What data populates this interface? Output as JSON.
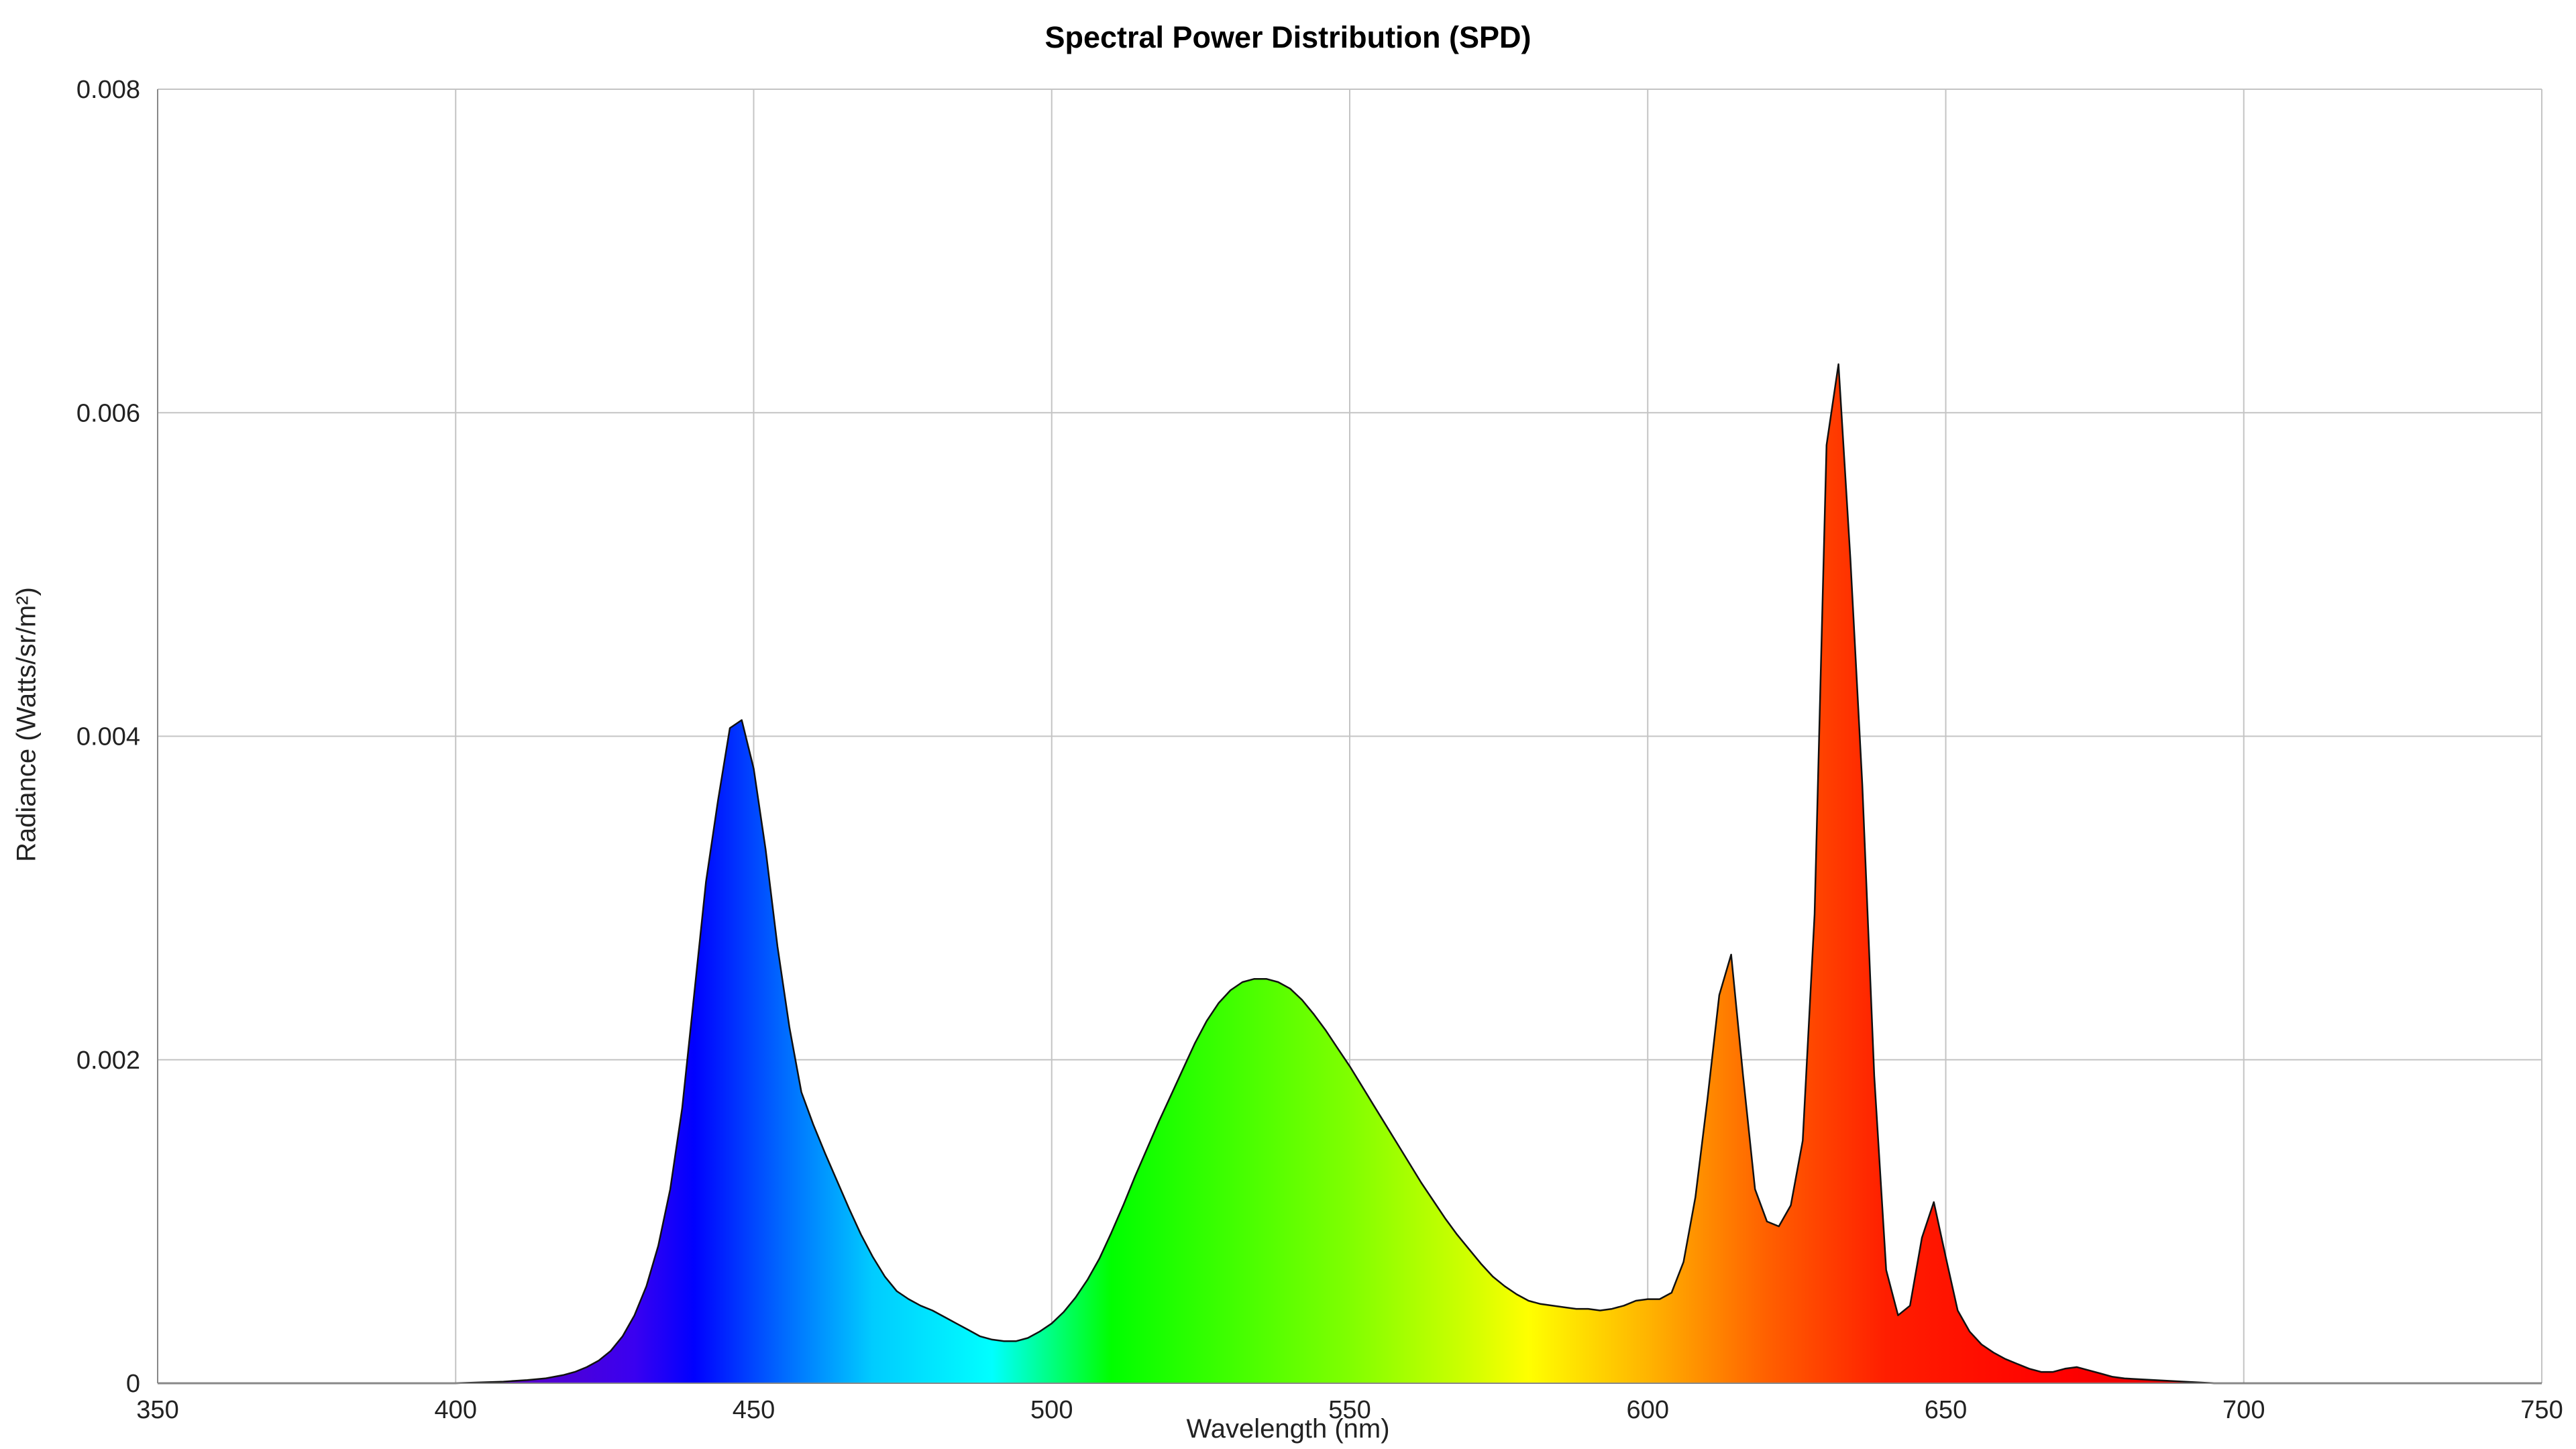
{
  "chart_data": {
    "type": "area",
    "title": "Spectral Power Distribution (SPD)",
    "xlabel": "Wavelength (nm)",
    "ylabel": "Radiance (Watts/sr/m²)",
    "xlim": [
      350,
      750
    ],
    "ylim": [
      0,
      0.008
    ],
    "x_ticks": [
      "350",
      "400",
      "450",
      "500",
      "550",
      "600",
      "650",
      "700",
      "750"
    ],
    "y_ticks": [
      "0",
      "0.002",
      "0.004",
      "0.006",
      "0.008"
    ],
    "grid": true,
    "fill": "visible-spectrum gradient",
    "x": [
      350,
      380,
      400,
      408,
      412,
      415,
      418,
      420,
      422,
      424,
      426,
      428,
      430,
      432,
      434,
      436,
      438,
      440,
      442,
      444,
      446,
      448,
      450,
      452,
      454,
      456,
      458,
      460,
      462,
      464,
      466,
      468,
      470,
      472,
      474,
      476,
      478,
      480,
      482,
      484,
      486,
      488,
      490,
      492,
      494,
      496,
      498,
      500,
      502,
      504,
      506,
      508,
      510,
      512,
      514,
      516,
      518,
      520,
      522,
      524,
      526,
      528,
      530,
      532,
      534,
      536,
      538,
      540,
      542,
      544,
      546,
      548,
      550,
      552,
      554,
      556,
      558,
      560,
      562,
      564,
      566,
      568,
      570,
      572,
      574,
      576,
      578,
      580,
      582,
      584,
      586,
      588,
      590,
      592,
      594,
      596,
      598,
      600,
      602,
      604,
      606,
      608,
      610,
      612,
      614,
      616,
      618,
      620,
      622,
      624,
      626,
      628,
      630,
      632,
      634,
      636,
      638,
      640,
      642,
      644,
      646,
      648,
      650,
      652,
      654,
      656,
      658,
      660,
      662,
      664,
      666,
      668,
      670,
      672,
      674,
      676,
      678,
      680,
      685,
      690,
      695,
      700,
      720,
      750
    ],
    "y": [
      0,
      0,
      0,
      1e-05,
      2e-05,
      3e-05,
      5e-05,
      7e-05,
      0.0001,
      0.00014,
      0.0002,
      0.00029,
      0.00042,
      0.0006,
      0.00085,
      0.0012,
      0.0017,
      0.0024,
      0.0031,
      0.0036,
      0.00405,
      0.0041,
      0.0038,
      0.0033,
      0.0027,
      0.0022,
      0.0018,
      0.0016,
      0.00142,
      0.00125,
      0.00108,
      0.00092,
      0.00078,
      0.00066,
      0.00057,
      0.00052,
      0.00048,
      0.00045,
      0.00041,
      0.00037,
      0.00033,
      0.00029,
      0.00027,
      0.00026,
      0.00026,
      0.00028,
      0.00032,
      0.00037,
      0.00044,
      0.00053,
      0.00064,
      0.00077,
      0.00093,
      0.0011,
      0.00128,
      0.00145,
      0.00162,
      0.00178,
      0.00194,
      0.0021,
      0.00224,
      0.00235,
      0.00243,
      0.00248,
      0.0025,
      0.0025,
      0.00248,
      0.00244,
      0.00237,
      0.00228,
      0.00218,
      0.00207,
      0.00196,
      0.00184,
      0.00172,
      0.0016,
      0.00148,
      0.00136,
      0.00124,
      0.00113,
      0.00102,
      0.00092,
      0.00083,
      0.00074,
      0.00066,
      0.0006,
      0.00055,
      0.00051,
      0.00049,
      0.00048,
      0.00047,
      0.00046,
      0.00046,
      0.00045,
      0.00046,
      0.00048,
      0.00051,
      0.00052,
      0.00052,
      0.00056,
      0.00075,
      0.00115,
      0.00175,
      0.0024,
      0.00265,
      0.0019,
      0.0012,
      0.001,
      0.00097,
      0.0011,
      0.0015,
      0.0029,
      0.0058,
      0.0063,
      0.0051,
      0.0037,
      0.0019,
      0.0007,
      0.00042,
      0.00048,
      0.0009,
      0.00112,
      0.00078,
      0.00045,
      0.00032,
      0.00024,
      0.00019,
      0.00015,
      0.00012,
      9e-05,
      7e-05,
      7e-05,
      9e-05,
      0.0001,
      8e-05,
      6e-05,
      4e-05,
      3e-05,
      2e-05,
      1e-05,
      0,
      0,
      0,
      0
    ]
  }
}
